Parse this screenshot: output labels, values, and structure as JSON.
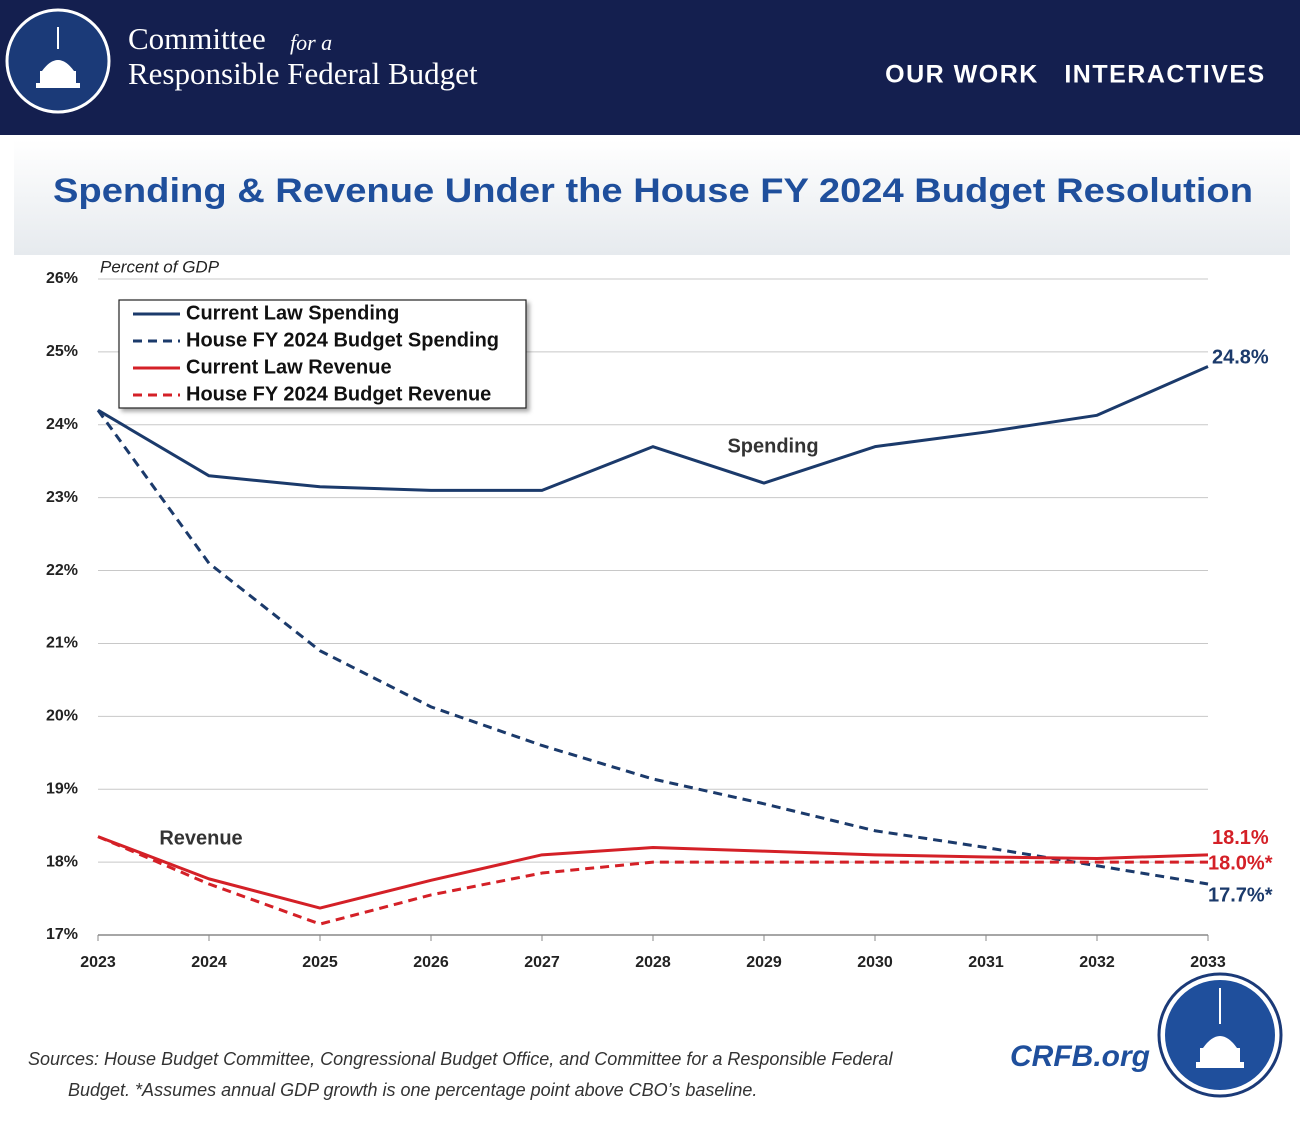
{
  "header": {
    "org_line1": "Committee",
    "org_small": "for a",
    "org_line2": "Responsible Federal Budget",
    "nav": [
      "OUR WORK",
      "INTERACTIVES"
    ]
  },
  "chart_data": {
    "type": "line",
    "title": "Spending & Revenue Under the House FY 2024 Budget Resolution",
    "y_label": "Percent of GDP",
    "categories": [
      "2023",
      "2024",
      "2025",
      "2026",
      "2027",
      "2028",
      "2029",
      "2030",
      "2031",
      "2032",
      "2033"
    ],
    "ylim": [
      17,
      26
    ],
    "yticks": [
      {
        "value": 17,
        "label": "17%"
      },
      {
        "value": 18,
        "label": "18%"
      },
      {
        "value": 19,
        "label": "19%"
      },
      {
        "value": 20,
        "label": "20%"
      },
      {
        "value": 21,
        "label": "21%"
      },
      {
        "value": 22,
        "label": "22%"
      },
      {
        "value": 23,
        "label": "23%"
      },
      {
        "value": 24,
        "label": "24%"
      },
      {
        "value": 25,
        "label": "25%"
      },
      {
        "value": 26,
        "label": "26%"
      }
    ],
    "grid": true,
    "legend": "upper left",
    "series": [
      {
        "name": "Current Law Spending",
        "color": "#1b3a6b",
        "style": "solid",
        "values": [
          24.2,
          23.3,
          23.15,
          23.1,
          23.1,
          23.7,
          23.2,
          23.7,
          23.9,
          24.13,
          24.8
        ],
        "value_labels": [
          null,
          null,
          null,
          null,
          null,
          null,
          null,
          null,
          null,
          null,
          "24.8%"
        ]
      },
      {
        "name": "House FY 2024 Budget Spending",
        "color": "#1b3a6b",
        "style": "dashed",
        "values": [
          24.2,
          22.1,
          20.9,
          20.13,
          19.6,
          19.14,
          18.8,
          18.43,
          18.2,
          17.95,
          17.7
        ],
        "value_labels": [
          null,
          null,
          null,
          null,
          null,
          null,
          null,
          null,
          null,
          null,
          "17.7%*"
        ]
      },
      {
        "name": "Current Law Revenue",
        "color": "#d42027",
        "style": "solid",
        "values": [
          18.35,
          17.77,
          17.37,
          17.75,
          18.1,
          18.2,
          18.15,
          18.1,
          18.07,
          18.05,
          18.1
        ],
        "value_labels": [
          null,
          null,
          null,
          null,
          null,
          null,
          null,
          null,
          null,
          null,
          "18.1%"
        ]
      },
      {
        "name": "House FY 2024 Budget Revenue",
        "color": "#d42027",
        "style": "dashed",
        "values": [
          18.35,
          17.7,
          17.15,
          17.55,
          17.85,
          18.0,
          18.0,
          18.0,
          18.0,
          18.0,
          18.0
        ],
        "value_labels": [
          null,
          null,
          null,
          null,
          null,
          null,
          null,
          null,
          null,
          null,
          "18.0%*"
        ]
      }
    ],
    "annotations": [
      "Spending",
      "Revenue"
    ]
  },
  "footer": {
    "source": "Sources: House Budget Committee, Congressional Budget Office, and Committee for a Responsible Federal Budget. *Assumes annual GDP growth is one percentage point above CBO’s baseline.",
    "site": "CRFB.org"
  }
}
